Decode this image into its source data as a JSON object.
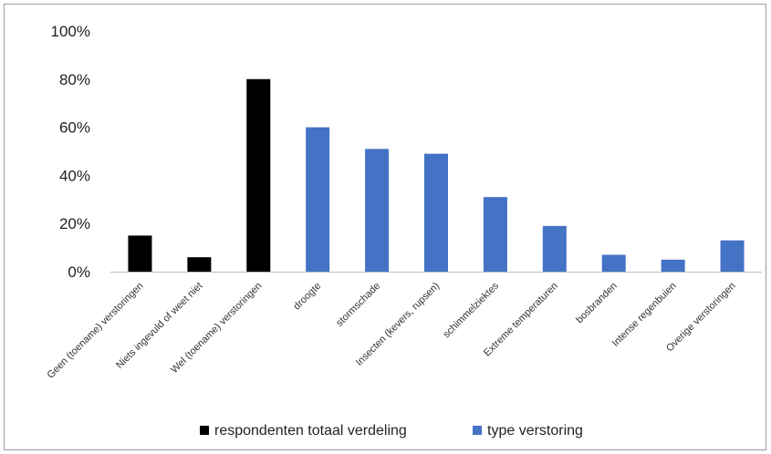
{
  "chart_data": {
    "type": "bar",
    "categories": [
      "Geen (toename) verstoringen",
      "Niets ingevuld of weet niet",
      "Wel (toename) verstoringen",
      "droogte",
      "stormschade",
      "Insecten (kevers, rupsen)",
      "schimmelziektes",
      "Extreme temperaturen",
      "bosbranden",
      "Intense regenbuien",
      "Overige verstoringen"
    ],
    "values": [
      15,
      6,
      80,
      60,
      51,
      49,
      31,
      19,
      7,
      5,
      13
    ],
    "groups": [
      0,
      0,
      0,
      1,
      1,
      1,
      1,
      1,
      1,
      1,
      1
    ],
    "series": [
      {
        "name": "respondenten totaal verdeling",
        "color": "#000000"
      },
      {
        "name": "type verstoring",
        "color": "#4472c4"
      }
    ],
    "ylim": [
      0,
      100
    ],
    "yticks": [
      "0%",
      "20%",
      "40%",
      "60%",
      "80%",
      "100%"
    ],
    "ytick_values": [
      0,
      20,
      40,
      60,
      80,
      100
    ],
    "grid": false,
    "legend_position": "bottom"
  }
}
